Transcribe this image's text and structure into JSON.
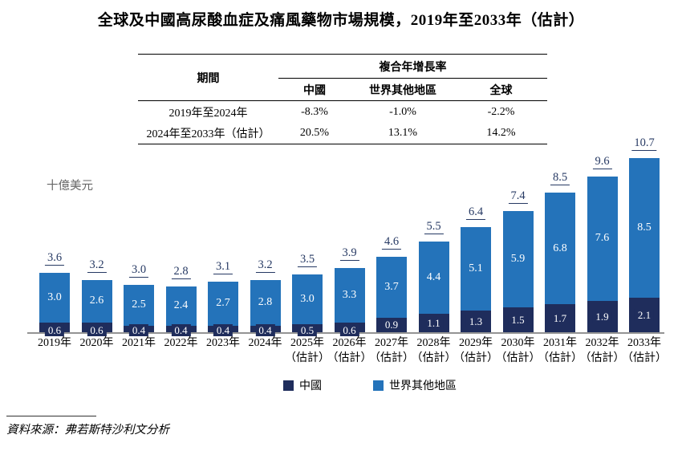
{
  "title": "全球及中國高尿酸血症及痛風藥物市場規模，2019年至2033年（估計）",
  "table": {
    "period_header": "期間",
    "cagr_header": "複合年增長率",
    "columns": [
      "中國",
      "世界其他地區",
      "全球"
    ],
    "rows": [
      {
        "period": "2019年至2024年",
        "values": [
          "-8.3%",
          "-1.0%",
          "-2.2%"
        ]
      },
      {
        "period": "2024年至2033年（估計）",
        "values": [
          "20.5%",
          "13.1%",
          "14.2%"
        ]
      }
    ]
  },
  "unit_label": "十億美元",
  "legend": [
    {
      "label": "中國",
      "color": "#1F2D5C"
    },
    {
      "label": "世界其他地區",
      "color": "#2473BA"
    }
  ],
  "source": "資料來源：弗若斯特沙利文分析",
  "chart_data": {
    "type": "bar",
    "stacked": true,
    "title": "全球及中國高尿酸血症及痛風藥物市場規模，2019年至2033年（估計）",
    "ylabel": "十億美元",
    "categories": [
      "2019年",
      "2020年",
      "2021年",
      "2022年",
      "2023年",
      "2024年",
      "2025年\n（估計）",
      "2026年\n（估計）",
      "2027年\n（估計）",
      "2028年\n（估計）",
      "2029年\n（估計）",
      "2030年\n（估計）",
      "2031年\n（估計）",
      "2032年\n（估計）",
      "2033年\n（估計）"
    ],
    "series": [
      {
        "name": "中國",
        "color": "#1F2D5C",
        "values": [
          0.6,
          0.6,
          0.4,
          0.4,
          0.4,
          0.4,
          0.5,
          0.6,
          0.9,
          1.1,
          1.3,
          1.5,
          1.7,
          1.9,
          2.1
        ]
      },
      {
        "name": "世界其他地區",
        "color": "#2473BA",
        "values": [
          3.0,
          2.6,
          2.5,
          2.4,
          2.7,
          2.8,
          3.0,
          3.3,
          3.7,
          4.4,
          5.1,
          5.9,
          6.8,
          7.6,
          8.5
        ]
      }
    ],
    "totals": [
      3.6,
      3.2,
      3.0,
      2.8,
      3.1,
      3.2,
      3.5,
      3.9,
      4.6,
      5.5,
      6.4,
      7.4,
      8.5,
      9.6,
      10.7
    ],
    "ylim": [
      0,
      11
    ],
    "grid": false,
    "legend_position": "bottom",
    "cagr_table": {
      "2019-2024": {
        "中國": -8.3,
        "世界其他地區": -1.0,
        "全球": -2.2
      },
      "2024-2033E": {
        "中國": 20.5,
        "世界其他地區": 13.1,
        "全球": 14.2
      }
    }
  }
}
